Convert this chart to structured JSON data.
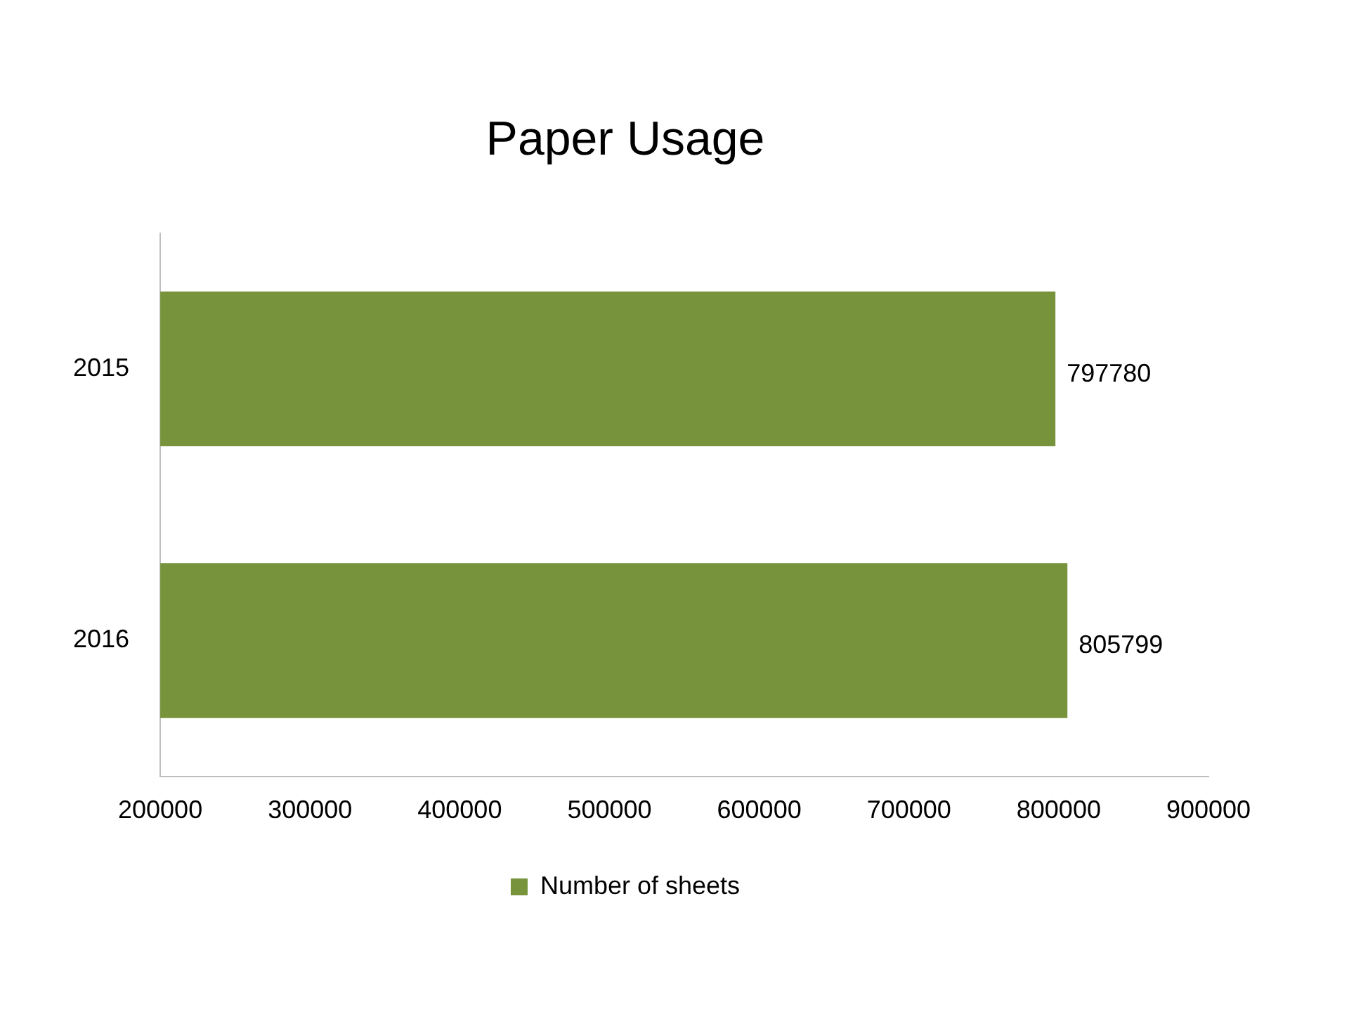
{
  "chart_data": {
    "type": "bar",
    "orientation": "horizontal",
    "title": "Paper Usage",
    "categories": [
      "2015",
      "2016"
    ],
    "series": [
      {
        "name": "Number of sheets",
        "color": "#77933c",
        "values": [
          797780,
          805799
        ]
      }
    ],
    "xlim": [
      200000,
      900000
    ],
    "xticks": [
      200000,
      300000,
      400000,
      500000,
      600000,
      700000,
      800000,
      900000
    ],
    "data_labels": true,
    "legend": "bottom",
    "grid": false
  }
}
